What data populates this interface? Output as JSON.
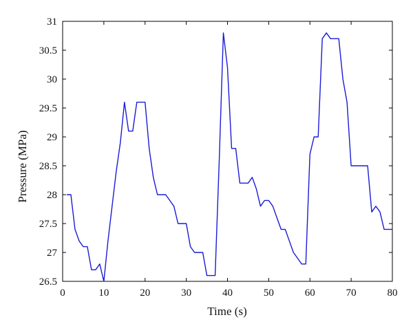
{
  "chart_data": {
    "type": "line",
    "title": "",
    "xlabel": "Time (s)",
    "ylabel": "Pressure (MPa)",
    "xlim": [
      0,
      80
    ],
    "ylim": [
      26.5,
      31
    ],
    "x_ticks": [
      0,
      10,
      20,
      30,
      40,
      50,
      60,
      70,
      80
    ],
    "y_ticks": [
      26.5,
      27,
      27.5,
      28,
      28.5,
      29,
      29.5,
      30,
      30.5,
      31
    ],
    "grid": false,
    "line_color": "#1a1ad6",
    "series": [
      {
        "x": [
          1,
          2,
          3,
          4,
          5,
          6,
          7,
          8,
          9,
          10,
          11,
          12,
          13,
          14,
          15,
          16,
          17,
          18,
          19,
          20,
          21,
          22,
          23,
          24,
          25,
          26,
          27,
          28,
          29,
          30,
          31,
          32,
          33,
          34,
          35,
          36,
          37,
          38,
          39,
          40,
          41,
          42,
          43,
          44,
          45,
          46,
          47,
          48,
          49,
          50,
          51,
          52,
          53,
          54,
          55,
          56,
          57,
          58,
          59,
          60,
          61,
          62,
          63,
          64,
          65,
          66,
          67,
          68,
          69,
          70,
          71,
          72,
          73,
          74,
          75,
          76,
          77,
          78,
          79,
          80
        ],
        "y": [
          28.0,
          28.0,
          27.4,
          27.2,
          27.1,
          27.1,
          26.7,
          26.7,
          26.8,
          26.5,
          27.2,
          27.8,
          28.4,
          28.9,
          29.6,
          29.1,
          29.1,
          29.6,
          29.6,
          29.6,
          28.8,
          28.3,
          28.0,
          28.0,
          28.0,
          27.9,
          27.8,
          27.5,
          27.5,
          27.5,
          27.1,
          27.0,
          27.0,
          27.0,
          26.6,
          26.6,
          26.6,
          28.6,
          30.8,
          30.2,
          28.8,
          28.8,
          28.2,
          28.2,
          28.2,
          28.3,
          28.1,
          27.8,
          27.9,
          27.9,
          27.8,
          27.6,
          27.4,
          27.4,
          27.2,
          27.0,
          26.9,
          26.8,
          26.8,
          28.7,
          29.0,
          29.0,
          30.7,
          30.8,
          30.7,
          30.7,
          30.7,
          30.0,
          29.6,
          28.5,
          28.5,
          28.5,
          28.5,
          28.5,
          27.7,
          27.8,
          27.7,
          27.4,
          27.4,
          27.4
        ]
      }
    ]
  }
}
